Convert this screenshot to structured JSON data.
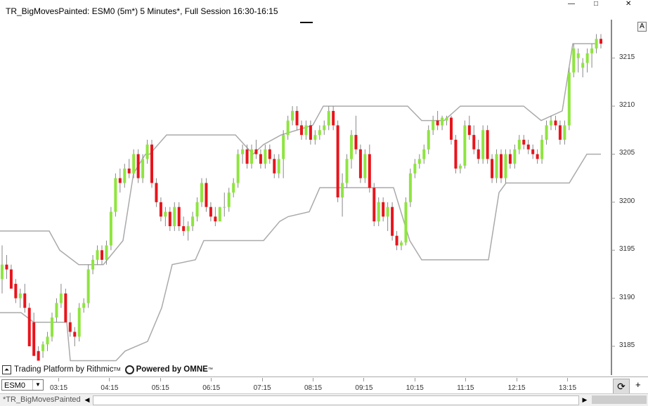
{
  "window": {
    "title": "TR_BigMovesPainted: ESM0 (5m*) 5 Minutes*, Full Session 16:30-16:15",
    "controls": [
      "—",
      "□",
      "✕"
    ],
    "autoscale_button": "A"
  },
  "footer": {
    "platform_text": "Trading Platform by Rithmic",
    "platform_tm": "TM",
    "powered_text": "Powered by OMNE",
    "powered_tm": "™"
  },
  "toolbar": {
    "symbol": "ESM0",
    "tab_label": "*TR_BigMovesPainted",
    "plus_label": "+"
  },
  "colors": {
    "bull": "#8ee53f",
    "bear": "#e8141c",
    "channel": "#aaaaaa",
    "wick": "#888888"
  },
  "chart_data": {
    "type": "candlestick",
    "title": "TR_BigMovesPainted: ESM0 (5m*) 5 Minutes*, Full Session 16:30-16:15",
    "y_ticks": [
      3185,
      3190,
      3195,
      3200,
      3205,
      3210,
      3215
    ],
    "ylim": [
      3182,
      3219
    ],
    "x_tick_labels": [
      "03:15",
      "04:15",
      "05:15",
      "06:15",
      "07:15",
      "08:15",
      "09:15",
      "10:15",
      "11:15",
      "12:15",
      "13:15"
    ],
    "candles": [
      [
        3192,
        3195.5,
        3190.5,
        3193.5
      ],
      [
        3193.5,
        3194.5,
        3192,
        3193
      ],
      [
        3193,
        3193.5,
        3191,
        3191
      ],
      [
        3191.5,
        3192,
        3189.5,
        3190
      ],
      [
        3190,
        3191,
        3189,
        3190.5
      ],
      [
        3190.5,
        3191.5,
        3188.5,
        3189
      ],
      [
        3189,
        3189.5,
        3185,
        3185
      ],
      [
        3187.5,
        3188.5,
        3184,
        3184
      ],
      [
        3184.5,
        3185,
        3183.5,
        3183.5
      ],
      [
        3184.5,
        3185.5,
        3183.8,
        3185.2
      ],
      [
        3185.2,
        3186.5,
        3184.5,
        3186
      ],
      [
        3186,
        3188.5,
        3185.5,
        3188
      ],
      [
        3188,
        3190,
        3187.5,
        3189.5
      ],
      [
        3189.5,
        3191.5,
        3189,
        3190.5
      ],
      [
        3190.5,
        3191,
        3187.5,
        3187.5
      ],
      [
        3187.5,
        3188.5,
        3186,
        3186.5
      ],
      [
        3186.5,
        3187,
        3185,
        3186
      ],
      [
        3186,
        3189.5,
        3185.5,
        3189
      ],
      [
        3189,
        3190,
        3188.5,
        3189.5
      ],
      [
        3189.5,
        3193.5,
        3189,
        3193
      ],
      [
        3193,
        3194.5,
        3192.5,
        3194
      ],
      [
        3194,
        3195.5,
        3193.5,
        3195
      ],
      [
        3195,
        3195.5,
        3193.5,
        3194
      ],
      [
        3194,
        3196,
        3193.5,
        3195.5
      ],
      [
        3195.5,
        3199.5,
        3195,
        3199
      ],
      [
        3199,
        3203,
        3198.5,
        3202.5
      ],
      [
        3202.5,
        3203.5,
        3201,
        3202
      ],
      [
        3202,
        3204,
        3201.5,
        3203.5
      ],
      [
        3203.5,
        3204.5,
        3202.5,
        3203
      ],
      [
        3203,
        3205.5,
        3202.5,
        3205
      ],
      [
        3205,
        3205.5,
        3202,
        3202.5
      ],
      [
        3202.5,
        3205,
        3202,
        3204.5
      ],
      [
        3204.5,
        3206.5,
        3204,
        3206
      ],
      [
        3206,
        3206.5,
        3201.5,
        3202
      ],
      [
        3202,
        3202.5,
        3199.5,
        3200
      ],
      [
        3200,
        3200.5,
        3198,
        3198.5
      ],
      [
        3198.5,
        3199.5,
        3197.5,
        3199
      ],
      [
        3199,
        3199.5,
        3197,
        3197.5
      ],
      [
        3197.5,
        3200,
        3197,
        3199.5
      ],
      [
        3199.5,
        3200,
        3197,
        3197.5
      ],
      [
        3197.5,
        3198.5,
        3196.5,
        3197
      ],
      [
        3197,
        3198,
        3196,
        3197.5
      ],
      [
        3197.5,
        3199,
        3197,
        3198.5
      ],
      [
        3198.5,
        3200.5,
        3198,
        3200
      ],
      [
        3200,
        3202.5,
        3199.5,
        3202
      ],
      [
        3202,
        3202.5,
        3199,
        3199.5
      ],
      [
        3199.5,
        3200,
        3198,
        3198.5
      ],
      [
        3198.5,
        3199.5,
        3197.5,
        3198
      ],
      [
        3198,
        3199.5,
        3198,
        3199.5
      ],
      [
        3199.5,
        3201,
        3198.5,
        3199.5
      ],
      [
        3199.5,
        3201.5,
        3199,
        3201
      ],
      [
        3201,
        3202.5,
        3200.5,
        3202
      ],
      [
        3202,
        3205.5,
        3201.5,
        3205
      ],
      [
        3205,
        3206,
        3204,
        3205.5
      ],
      [
        3205.5,
        3206,
        3203.5,
        3204
      ],
      [
        3204,
        3206,
        3203.5,
        3205.5
      ],
      [
        3205.5,
        3206.5,
        3204.5,
        3205
      ],
      [
        3205,
        3205.5,
        3203.5,
        3204
      ],
      [
        3204,
        3206,
        3203.5,
        3205.5
      ],
      [
        3205.5,
        3206,
        3204,
        3204.5
      ],
      [
        3204.5,
        3205,
        3202.5,
        3203
      ],
      [
        3203,
        3205,
        3202.5,
        3204.5
      ],
      [
        3204.5,
        3207.5,
        3202.5,
        3207
      ],
      [
        3207,
        3209,
        3206.5,
        3208.5
      ],
      [
        3208.5,
        3210,
        3208,
        3209.5
      ],
      [
        3209.5,
        3210,
        3207.5,
        3208
      ],
      [
        3208,
        3208.5,
        3206.5,
        3207
      ],
      [
        3207,
        3208.5,
        3206.5,
        3208
      ],
      [
        3208,
        3208.5,
        3206,
        3206.5
      ],
      [
        3206.5,
        3207.5,
        3206,
        3207
      ],
      [
        3207,
        3208,
        3206.5,
        3207.5
      ],
      [
        3207.5,
        3208.5,
        3207,
        3208
      ],
      [
        3208,
        3210,
        3207.5,
        3209.5
      ],
      [
        3209.5,
        3210,
        3207.5,
        3208
      ],
      [
        3208,
        3208.5,
        3200,
        3200.5
      ],
      [
        3200.5,
        3203,
        3198.5,
        3202
      ],
      [
        3202,
        3205,
        3201.5,
        3204.5
      ],
      [
        3204.5,
        3207.5,
        3203.5,
        3207
      ],
      [
        3207,
        3209,
        3205,
        3205.5
      ],
      [
        3205.5,
        3206,
        3202,
        3202.5
      ],
      [
        3202.5,
        3205.5,
        3202,
        3205
      ],
      [
        3205,
        3206,
        3201,
        3201.5
      ],
      [
        3201.5,
        3202,
        3197.5,
        3198
      ],
      [
        3198,
        3200.5,
        3197.5,
        3200
      ],
      [
        3200,
        3200.5,
        3198,
        3198.5
      ],
      [
        3198.5,
        3200,
        3197,
        3199.5
      ],
      [
        3199.5,
        3200,
        3196,
        3196.5
      ],
      [
        3196.5,
        3197,
        3195,
        3195.5
      ],
      [
        3195.5,
        3196,
        3195,
        3195.8
      ],
      [
        3195.8,
        3200.5,
        3195.5,
        3200
      ],
      [
        3200,
        3203.5,
        3199.5,
        3203
      ],
      [
        3203,
        3204.5,
        3202.5,
        3204
      ],
      [
        3204,
        3205,
        3203.5,
        3204.5
      ],
      [
        3204.5,
        3206,
        3204,
        3205.5
      ],
      [
        3205.5,
        3208,
        3205,
        3207.5
      ],
      [
        3207.5,
        3209,
        3207,
        3208.5
      ],
      [
        3208.5,
        3209.5,
        3207.5,
        3208
      ],
      [
        3208,
        3209,
        3207.5,
        3208.8
      ],
      [
        3208.5,
        3209,
        3208,
        3208.8
      ],
      [
        3208.8,
        3209,
        3206,
        3206.5
      ],
      [
        3206.5,
        3207,
        3203,
        3203.5
      ],
      [
        3203.5,
        3204,
        3203,
        3203.8
      ],
      [
        3203.8,
        3208.5,
        3203.5,
        3208
      ],
      [
        3208,
        3209,
        3206.5,
        3207
      ],
      [
        3207,
        3208,
        3205,
        3205.5
      ],
      [
        3205.5,
        3206.5,
        3204,
        3204.5
      ],
      [
        3204.5,
        3208,
        3204,
        3207.5
      ],
      [
        3207.5,
        3208,
        3204,
        3204.5
      ],
      [
        3204.5,
        3205,
        3202,
        3202.5
      ],
      [
        3202.5,
        3205.5,
        3202,
        3205
      ],
      [
        3205,
        3205.5,
        3202,
        3202.5
      ],
      [
        3202.5,
        3205.5,
        3202,
        3205
      ],
      [
        3205,
        3205.5,
        3203.5,
        3204
      ],
      [
        3204,
        3206,
        3203.5,
        3205.5
      ],
      [
        3205.5,
        3207,
        3205,
        3206.5
      ],
      [
        3206.5,
        3207,
        3205.5,
        3206
      ],
      [
        3206,
        3206.5,
        3205,
        3205.5
      ],
      [
        3205.5,
        3206,
        3204.5,
        3205
      ],
      [
        3205,
        3205.5,
        3204,
        3204.5
      ],
      [
        3204.5,
        3207,
        3204,
        3206.5
      ],
      [
        3206.5,
        3208.5,
        3206,
        3208
      ],
      [
        3208,
        3209,
        3207.5,
        3208.5
      ],
      [
        3208.5,
        3209,
        3207.5,
        3208
      ],
      [
        3208,
        3208.5,
        3206,
        3206.5
      ],
      [
        3206.5,
        3208.5,
        3206,
        3208
      ],
      [
        3208,
        3214,
        3207.5,
        3213.5
      ],
      [
        3213.5,
        3216.5,
        3213,
        3216
      ],
      [
        3215,
        3216,
        3213.5,
        3215.5
      ],
      [
        3214,
        3215,
        3213,
        3214.5
      ],
      [
        3214.5,
        3216,
        3213.5,
        3215.5
      ],
      [
        3215.5,
        3216.5,
        3214,
        3216
      ],
      [
        3216,
        3217.5,
        3215.5,
        3217
      ],
      [
        3217,
        3217.5,
        3216,
        3216.5
      ]
    ],
    "upper_channel": [
      [
        0,
        3197
      ],
      [
        70,
        3197
      ],
      [
        85,
        3195
      ],
      [
        112,
        3193.5
      ],
      [
        147,
        3193.5
      ],
      [
        175,
        3196
      ],
      [
        190,
        3203
      ],
      [
        207,
        3205
      ],
      [
        213,
        3205
      ],
      [
        237,
        3207
      ],
      [
        335,
        3207
      ],
      [
        360,
        3205
      ],
      [
        375,
        3206
      ],
      [
        400,
        3207
      ],
      [
        445,
        3208
      ],
      [
        460,
        3210
      ],
      [
        470,
        3210
      ],
      [
        580,
        3210
      ],
      [
        600,
        3208.5
      ],
      [
        632,
        3208.5
      ],
      [
        655,
        3210
      ],
      [
        680,
        3210
      ],
      [
        745,
        3210
      ],
      [
        770,
        3208.5
      ],
      [
        800,
        3209.5
      ],
      [
        815,
        3216.5
      ],
      [
        850,
        3216.5
      ]
    ],
    "lower_channel": [
      [
        0,
        3188.5
      ],
      [
        30,
        3188.5
      ],
      [
        48,
        3187.5
      ],
      [
        95,
        3187.5
      ],
      [
        100,
        3183.5
      ],
      [
        165,
        3183.5
      ],
      [
        178,
        3184.5
      ],
      [
        210,
        3185.5
      ],
      [
        230,
        3189
      ],
      [
        245,
        3193.5
      ],
      [
        278,
        3194
      ],
      [
        290,
        3196
      ],
      [
        375,
        3196
      ],
      [
        398,
        3198
      ],
      [
        410,
        3198.5
      ],
      [
        440,
        3199
      ],
      [
        455,
        3201.5
      ],
      [
        560,
        3201.5
      ],
      [
        583,
        3196
      ],
      [
        600,
        3194
      ],
      [
        695,
        3194
      ],
      [
        710,
        3201
      ],
      [
        720,
        3202
      ],
      [
        810,
        3202
      ],
      [
        835,
        3205
      ],
      [
        855,
        3205
      ]
    ]
  }
}
